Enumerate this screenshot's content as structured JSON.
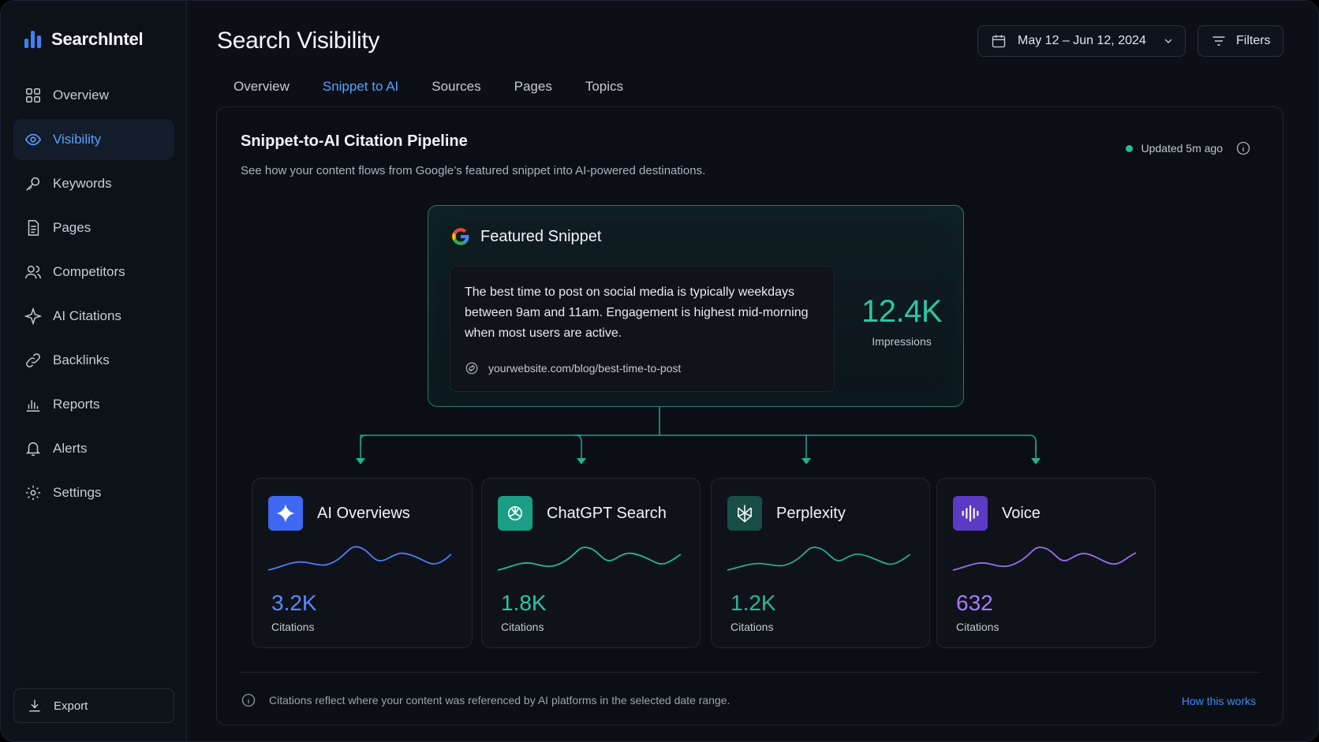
{
  "app": {
    "name": "SearchIntel"
  },
  "sidebar": {
    "items": [
      {
        "label": "Overview",
        "icon": "grid-icon"
      },
      {
        "label": "Visibility",
        "icon": "eye-icon",
        "active": true
      },
      {
        "label": "Keywords",
        "icon": "key-icon"
      },
      {
        "label": "Pages",
        "icon": "document-icon"
      },
      {
        "label": "Competitors",
        "icon": "users-icon"
      },
      {
        "label": "AI Citations",
        "icon": "sparkle-icon"
      },
      {
        "label": "Backlinks",
        "icon": "link-icon"
      },
      {
        "label": "Reports",
        "icon": "bar-chart-icon"
      },
      {
        "label": "Alerts",
        "icon": "bell-icon"
      },
      {
        "label": "Settings",
        "icon": "gear-icon"
      }
    ],
    "export_label": "Export"
  },
  "header": {
    "title": "Search Visibility",
    "date_range": "May 12 – Jun 12, 2024",
    "filters_label": "Filters"
  },
  "tabs": [
    {
      "label": "Overview"
    },
    {
      "label": "Snippet to AI",
      "active": true
    },
    {
      "label": "Sources"
    },
    {
      "label": "Pages"
    },
    {
      "label": "Topics"
    }
  ],
  "panel": {
    "title": "Snippet-to-AI Citation Pipeline",
    "subtitle": "See how your content flows from Google’s featured snippet into AI-powered destinations.",
    "updated": "Updated 5m ago",
    "status_color": "#22c08a"
  },
  "snippet": {
    "title": "Featured Snippet",
    "text": "The best time to post on social media is typically weekdays between 9am and 11am. Engagement is highest mid-morning when most users are active.",
    "url": "yourwebsite.com/blog/best-time-to-post",
    "impressions_value": "12.4K",
    "impressions_label": "Impressions",
    "accent": "#2ec4a6"
  },
  "destinations": [
    {
      "name": "AI Overviews",
      "value": "3.2K",
      "label": "Citations",
      "color": "#4f7cf7",
      "icon": "sparkle-icon"
    },
    {
      "name": "ChatGPT Search",
      "value": "1.8K",
      "label": "Citations",
      "color": "#26b79b",
      "icon": "openai-icon"
    },
    {
      "name": "Perplexity",
      "value": "1.2K",
      "label": "Citations",
      "color": "#2aa891",
      "icon": "perplexity-icon"
    },
    {
      "name": "Voice",
      "value": "632",
      "label": "Citations",
      "color": "#9b6cf0",
      "icon": "waveform-icon"
    }
  ],
  "footer": {
    "note": "Citations reflect where your content was referenced by AI platforms in the selected date range.",
    "link": "How this works"
  }
}
